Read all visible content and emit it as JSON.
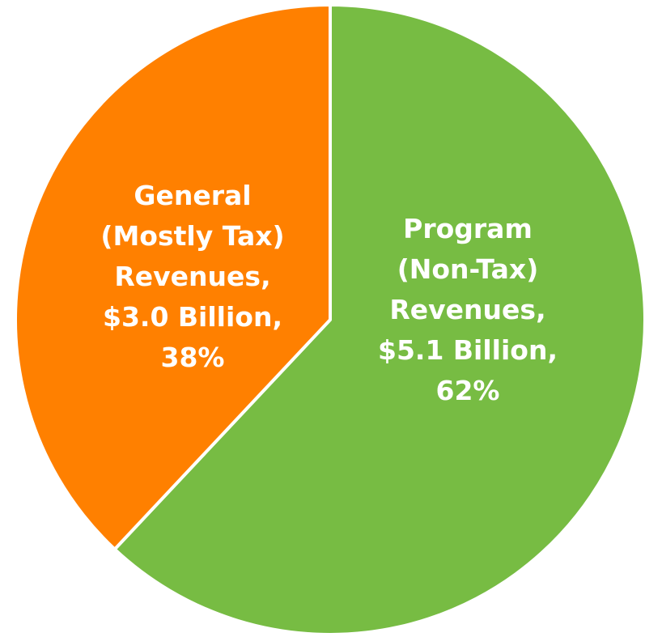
{
  "chart_data": {
    "type": "pie",
    "title": "",
    "slices": [
      {
        "name": "Program (Non-Tax) Revenues",
        "value": 5.1,
        "percent": 62,
        "color": "#77bc43",
        "label_lines": [
          "Program",
          "(Non-Tax)",
          "Revenues,",
          "$5.1 Billion,",
          "62%"
        ]
      },
      {
        "name": "General (Mostly Tax) Revenues",
        "value": 3.0,
        "percent": 38,
        "color": "#ff8000",
        "label_lines": [
          "General",
          "(Mostly Tax)",
          "Revenues,",
          "$3.0 Billion,",
          "38%"
        ]
      }
    ],
    "units": "Billion",
    "start_angle": "top",
    "direction": "clockwise",
    "separator_color": "#ffffff"
  }
}
